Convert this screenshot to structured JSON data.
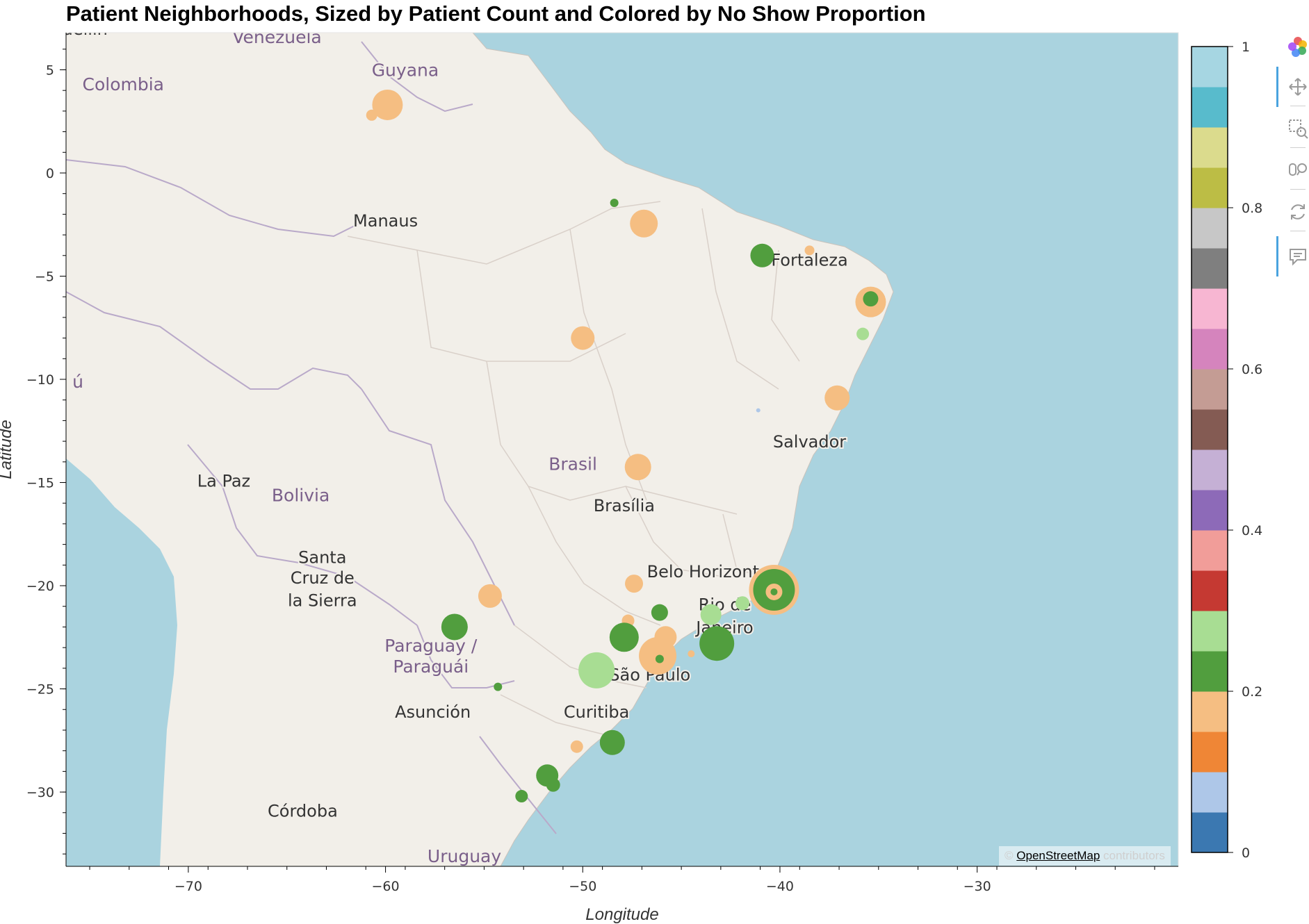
{
  "chart_data": {
    "type": "scatter",
    "title": "Patient Neighborhoods, Sized by Patient Count and Colored by No Show Proportion",
    "xlabel": "Longitude",
    "ylabel": "Latitude",
    "xlim": [
      -76.2,
      -19.8
    ],
    "ylim": [
      -33.6,
      6.8
    ],
    "x_ticks": [
      -70,
      -60,
      -50,
      -40,
      -30
    ],
    "y_ticks": [
      5,
      0,
      -5,
      -10,
      -15,
      -20,
      -25,
      -30
    ],
    "color_scale": {
      "range": [
        0,
        1
      ],
      "ticks": [
        0,
        0.2,
        0.4,
        0.6,
        0.8,
        1
      ],
      "palette": [
        "#3b78b1",
        "#aec7e8",
        "#ef8636",
        "#f5be82",
        "#519e3e",
        "#a8dd93",
        "#c53932",
        "#f19d99",
        "#8d6ab8",
        "#c5b0d5",
        "#845b53",
        "#c49c94",
        "#d584bd",
        "#f7b6d2",
        "#7f7f7f",
        "#c7c7c7",
        "#bcbd45",
        "#dbdb8d",
        "#58bbcc",
        "#a6d6e2"
      ]
    },
    "points": [
      {
        "lon": -59.9,
        "lat": 3.3,
        "size": 22,
        "value": 0.18
      },
      {
        "lon": -60.7,
        "lat": 2.8,
        "size": 8,
        "value": 0.18
      },
      {
        "lon": -48.4,
        "lat": -1.45,
        "size": 6,
        "value": 0.22
      },
      {
        "lon": -46.9,
        "lat": -2.45,
        "size": 20,
        "value": 0.18
      },
      {
        "lon": -40.9,
        "lat": -4.0,
        "size": 17,
        "value": 0.22
      },
      {
        "lon": -38.5,
        "lat": -3.75,
        "size": 7,
        "value": 0.18
      },
      {
        "lon": -35.4,
        "lat": -6.25,
        "size": 22,
        "value": 0.18
      },
      {
        "lon": -35.4,
        "lat": -6.1,
        "size": 11,
        "value": 0.22
      },
      {
        "lon": -35.8,
        "lat": -7.8,
        "size": 9,
        "value": 0.28
      },
      {
        "lon": -50.0,
        "lat": -8.0,
        "size": 17,
        "value": 0.18
      },
      {
        "lon": -37.1,
        "lat": -10.9,
        "size": 18,
        "value": 0.18
      },
      {
        "lon": -41.1,
        "lat": -11.5,
        "size": 3,
        "value": 0.05
      },
      {
        "lon": -47.2,
        "lat": -14.25,
        "size": 19,
        "value": 0.18
      },
      {
        "lon": -54.7,
        "lat": -20.5,
        "size": 17,
        "value": 0.18
      },
      {
        "lon": -47.4,
        "lat": -19.9,
        "size": 13,
        "value": 0.18
      },
      {
        "lon": -40.3,
        "lat": -20.2,
        "size": 36,
        "value": 0.18
      },
      {
        "lon": -40.3,
        "lat": -20.2,
        "size": 30,
        "value": 0.22
      },
      {
        "lon": -40.3,
        "lat": -20.3,
        "size": 12,
        "value": 0.18
      },
      {
        "lon": -40.3,
        "lat": -20.3,
        "size": 5,
        "value": 0.22
      },
      {
        "lon": -41.9,
        "lat": -20.85,
        "size": 10,
        "value": 0.28
      },
      {
        "lon": -43.5,
        "lat": -21.4,
        "size": 15,
        "value": 0.28
      },
      {
        "lon": -46.1,
        "lat": -21.3,
        "size": 12,
        "value": 0.22
      },
      {
        "lon": -47.7,
        "lat": -21.7,
        "size": 9,
        "value": 0.18
      },
      {
        "lon": -56.5,
        "lat": -22.0,
        "size": 19,
        "value": 0.22
      },
      {
        "lon": -45.8,
        "lat": -22.5,
        "size": 16,
        "value": 0.18
      },
      {
        "lon": -47.9,
        "lat": -22.5,
        "size": 21,
        "value": 0.22
      },
      {
        "lon": -46.2,
        "lat": -23.4,
        "size": 27,
        "value": 0.18
      },
      {
        "lon": -43.2,
        "lat": -22.8,
        "size": 25,
        "value": 0.22
      },
      {
        "lon": -46.1,
        "lat": -23.55,
        "size": 6,
        "value": 0.22
      },
      {
        "lon": -44.5,
        "lat": -23.3,
        "size": 5,
        "value": 0.18
      },
      {
        "lon": -49.3,
        "lat": -24.1,
        "size": 26,
        "value": 0.28
      },
      {
        "lon": -54.3,
        "lat": -24.9,
        "size": 6,
        "value": 0.22
      },
      {
        "lon": -50.3,
        "lat": -27.8,
        "size": 9,
        "value": 0.18
      },
      {
        "lon": -48.5,
        "lat": -27.6,
        "size": 18,
        "value": 0.22
      },
      {
        "lon": -51.8,
        "lat": -29.2,
        "size": 16,
        "value": 0.22
      },
      {
        "lon": -51.5,
        "lat": -29.65,
        "size": 10,
        "value": 0.22
      },
      {
        "lon": -53.1,
        "lat": -30.2,
        "size": 9,
        "value": 0.22
      }
    ]
  },
  "map_labels": [
    {
      "id": "venezuela",
      "text": "Venezuela",
      "lon": -65.5,
      "lat": 6.3,
      "kind": "country"
    },
    {
      "id": "colombia",
      "text": "Colombia",
      "lon": -73.3,
      "lat": 4.0,
      "kind": "country"
    },
    {
      "id": "guyana",
      "text": "Guyana",
      "lon": -59.0,
      "lat": 4.7,
      "kind": "country"
    },
    {
      "id": "manaus",
      "text": "Manaus",
      "lon": -60.0,
      "lat": -2.6,
      "kind": "city"
    },
    {
      "id": "fortaleza",
      "text": "Fortaleza",
      "lon": -38.5,
      "lat": -4.5,
      "kind": "city"
    },
    {
      "id": "salvador",
      "text": "Salvador",
      "lon": -38.5,
      "lat": -13.3,
      "kind": "city"
    },
    {
      "id": "brasil",
      "text": "Brasil",
      "lon": -50.5,
      "lat": -14.4,
      "kind": "country"
    },
    {
      "id": "brasilia",
      "text": "Brasília",
      "lon": -47.9,
      "lat": -16.4,
      "kind": "city"
    },
    {
      "id": "la-paz",
      "text": "La Paz",
      "lon": -68.2,
      "lat": -15.2,
      "kind": "city"
    },
    {
      "id": "bolivia",
      "text": "Bolivia",
      "lon": -64.3,
      "lat": -15.9,
      "kind": "country"
    },
    {
      "id": "santa-cruz",
      "text": "Santa",
      "lon": -63.2,
      "lat": -18.9,
      "kind": "city"
    },
    {
      "id": "santa-cruz-2",
      "text": "Cruz de",
      "lon": -63.2,
      "lat": -19.9,
      "kind": "city"
    },
    {
      "id": "santa-cruz-3",
      "text": "la Sierra",
      "lon": -63.2,
      "lat": -21.0,
      "kind": "city"
    },
    {
      "id": "belo-horizonte",
      "text": "Belo Horizont",
      "lon": -43.9,
      "lat": -19.6,
      "kind": "city"
    },
    {
      "id": "rio",
      "text": "Rio de",
      "lon": -42.8,
      "lat": -21.2,
      "kind": "city"
    },
    {
      "id": "rio-2",
      "text": "Janeiro",
      "lon": -42.8,
      "lat": -22.3,
      "kind": "city"
    },
    {
      "id": "paraguay",
      "text": "Paraguay /",
      "lon": -57.7,
      "lat": -23.2,
      "kind": "country"
    },
    {
      "id": "paraguay-2",
      "text": "Paraguái",
      "lon": -57.7,
      "lat": -24.2,
      "kind": "country"
    },
    {
      "id": "sao-paulo",
      "text": "São Paulo",
      "lon": -46.6,
      "lat": -24.6,
      "kind": "city"
    },
    {
      "id": "asuncion",
      "text": "Asunción",
      "lon": -57.6,
      "lat": -26.4,
      "kind": "city"
    },
    {
      "id": "curitiba",
      "text": "Curitiba",
      "lon": -49.3,
      "lat": -26.4,
      "kind": "city"
    },
    {
      "id": "cordoba",
      "text": "Córdoba",
      "lon": -64.2,
      "lat": -31.2,
      "kind": "city"
    },
    {
      "id": "uruguay",
      "text": "Uruguay",
      "lon": -56.0,
      "lat": -33.4,
      "kind": "country"
    },
    {
      "id": "peru-fragment",
      "text": "ú",
      "lon": -75.6,
      "lat": -10.4,
      "kind": "country"
    },
    {
      "id": "medellin-fragment",
      "text": "edellín",
      "lon": -75.5,
      "lat": 6.7,
      "kind": "city"
    }
  ],
  "attribution": {
    "prefix": "©",
    "link": "OpenStreetMap",
    "suffix": "contributors"
  },
  "toolbar": {
    "tools": [
      "bokeh-logo",
      "pan-icon",
      "box-zoom-icon",
      "wheel-zoom-icon",
      "reset-icon",
      "hover-icon"
    ]
  }
}
